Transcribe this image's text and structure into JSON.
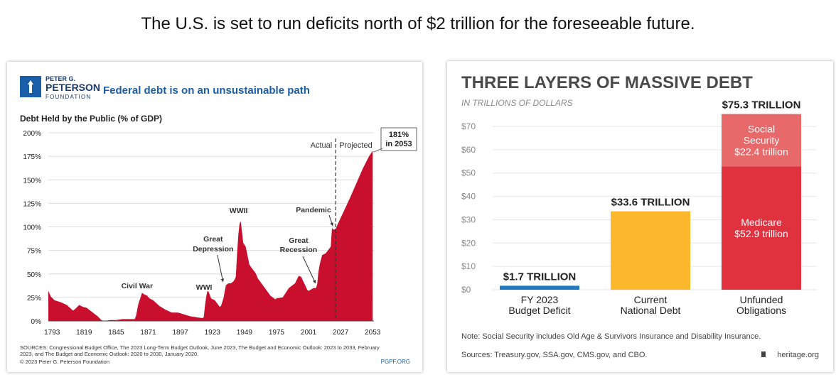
{
  "headline": "The U.S. is set to run deficits north of $2 trillion for the foreseeable future.",
  "left": {
    "logo": {
      "line1": "PETER G.",
      "line2": "PETERSON",
      "line3": "FOUNDATION"
    },
    "title": "Federal debt is on an unsustainable path",
    "sources_lines": [
      "SOURCES: Congressional Budget Office, The 2023 Long-Term Budget Outlook, June 2023, The Budget and Economic Outlook: 2023 to 2033, February",
      "2023, and The Budget and Economic Outlook: 2020 to 2030, January 2020."
    ],
    "copyright": "© 2023 Peter G. Peterson Foundation",
    "site": "PGPF.ORG"
  },
  "right": {
    "title": "THREE LAYERS OF MASSIVE DEBT",
    "subtitle": "IN TRILLIONS OF DOLLARS",
    "note": "Note: Social Security includes Old Age & Survivors Insurance and Disability Insurance.",
    "sources": "Sources: Treasury.gov, SSA.gov, CMS.gov, and CBO.",
    "credit": "heritage.org"
  },
  "colors": {
    "debt_red": "#c8102e",
    "peterson_blue": "#1a5da8",
    "bar_blue": "#1f7ac4",
    "bar_yellow": "#fbb82d",
    "bar_red": "#e0313f",
    "bar_pink": "#e8696a"
  },
  "chart_data": [
    {
      "type": "area",
      "title": "Debt Held by the Public (% of GDP)",
      "xlabel": "",
      "ylabel": "Debt Held by the Public (% of GDP)",
      "xlim": [
        1790,
        2054
      ],
      "ylim": [
        0,
        200
      ],
      "x_ticks": [
        1793,
        1819,
        1845,
        1871,
        1897,
        1923,
        1949,
        1975,
        2001,
        2027,
        2053
      ],
      "x_tick_labels": [
        "1793",
        "1819",
        "1845",
        "1871",
        "1897",
        "1923",
        "1949",
        "1975",
        "2001",
        "2027",
        "2053"
      ],
      "y_ticks": [
        0,
        25,
        50,
        75,
        100,
        125,
        150,
        175,
        200
      ],
      "y_tick_labels": [
        "0%",
        "25%",
        "50%",
        "75%",
        "100%",
        "125%",
        "150%",
        "175%",
        "200%"
      ],
      "grid": true,
      "divider": {
        "year": 2023,
        "left_label": "Actual",
        "right_label": "Projected"
      },
      "series": [
        {
          "name": "Debt held by the public",
          "x": [
            1790,
            1792,
            1795,
            1800,
            1805,
            1810,
            1812,
            1815,
            1818,
            1821,
            1825,
            1830,
            1833,
            1835,
            1840,
            1845,
            1850,
            1855,
            1860,
            1861,
            1863,
            1865,
            1866,
            1868,
            1870,
            1872,
            1875,
            1880,
            1885,
            1890,
            1895,
            1900,
            1905,
            1910,
            1915,
            1916,
            1917,
            1918,
            1919,
            1920,
            1922,
            1925,
            1929,
            1930,
            1932,
            1934,
            1936,
            1938,
            1940,
            1941,
            1942,
            1943,
            1944,
            1945,
            1946,
            1947,
            1948,
            1950,
            1953,
            1955,
            1958,
            1960,
            1965,
            1970,
            1974,
            1975,
            1980,
            1985,
            1990,
            1993,
            1995,
            2000,
            2001,
            2005,
            2007,
            2008,
            2009,
            2010,
            2012,
            2015,
            2019,
            2020,
            2021,
            2023,
            2025,
            2030,
            2035,
            2040,
            2045,
            2050,
            2053
          ],
          "values": [
            32,
            26,
            22,
            20,
            17,
            11,
            13,
            17,
            15,
            14,
            10,
            5,
            1,
            0,
            1,
            1,
            2,
            2,
            2,
            5,
            18,
            26,
            30,
            28,
            27,
            24,
            22,
            16,
            12,
            9,
            9,
            7,
            5,
            4,
            3,
            4,
            16,
            26,
            32,
            31,
            24,
            22,
            15,
            16,
            24,
            38,
            40,
            40,
            42,
            44,
            47,
            70,
            91,
            103,
            106,
            95,
            83,
            79,
            60,
            56,
            51,
            45,
            36,
            27,
            23,
            24,
            25,
            35,
            40,
            48,
            47,
            33,
            32,
            35,
            35,
            39,
            52,
            60,
            70,
            72,
            79,
            99,
            97,
            98,
            104,
            118,
            132,
            147,
            162,
            175,
            181
          ]
        }
      ],
      "annotations": [
        {
          "text": "Civil War",
          "year": 1866
        },
        {
          "text": "WWI",
          "year": 1918
        },
        {
          "text": "Great Depression",
          "year": 1934
        },
        {
          "text": "WWII",
          "year": 1946
        },
        {
          "text": "Great Recession",
          "year": 2009
        },
        {
          "text": "Pandemic",
          "year": 2020
        },
        {
          "text": "181% in 2053",
          "year": 2053,
          "value": 181
        }
      ]
    },
    {
      "type": "bar",
      "title": "THREE LAYERS OF MASSIVE DEBT",
      "subtitle": "IN TRILLIONS OF DOLLARS",
      "ylabel": "",
      "ylim": [
        0,
        70
      ],
      "y_ticks": [
        0,
        10,
        20,
        30,
        40,
        50,
        60,
        70
      ],
      "y_tick_labels": [
        "$0",
        "$10",
        "$20",
        "$30",
        "$40",
        "$50",
        "$60",
        "$70"
      ],
      "grid": true,
      "categories": [
        "FY 2023 Budget Deficit",
        "Current National Debt",
        "Unfunded Obligations"
      ],
      "category_lines": [
        [
          "FY 2023",
          "Budget Deficit"
        ],
        [
          "Current",
          "National Debt"
        ],
        [
          "Unfunded",
          "Obligations"
        ]
      ],
      "bars": [
        {
          "category": "FY 2023 Budget Deficit",
          "total_label": "$1.7 TRILLION",
          "segments": [
            {
              "name": "",
              "value": 1.7,
              "color": "#1f7ac4"
            }
          ]
        },
        {
          "category": "Current National Debt",
          "total_label": "$33.6 TRILLION",
          "segments": [
            {
              "name": "",
              "value": 33.6,
              "color": "#fbb82d"
            }
          ]
        },
        {
          "category": "Unfunded Obligations",
          "total_label": "$75.3 TRILLION",
          "segments": [
            {
              "name": "Medicare",
              "value": 52.9,
              "label_lines": [
                "Medicare",
                "$52.9 trillion"
              ],
              "color": "#e0313f"
            },
            {
              "name": "Social Security",
              "value": 22.4,
              "label_lines": [
                "Social",
                "Security",
                "$22.4 trillion"
              ],
              "color": "#e8696a"
            }
          ]
        }
      ]
    }
  ]
}
